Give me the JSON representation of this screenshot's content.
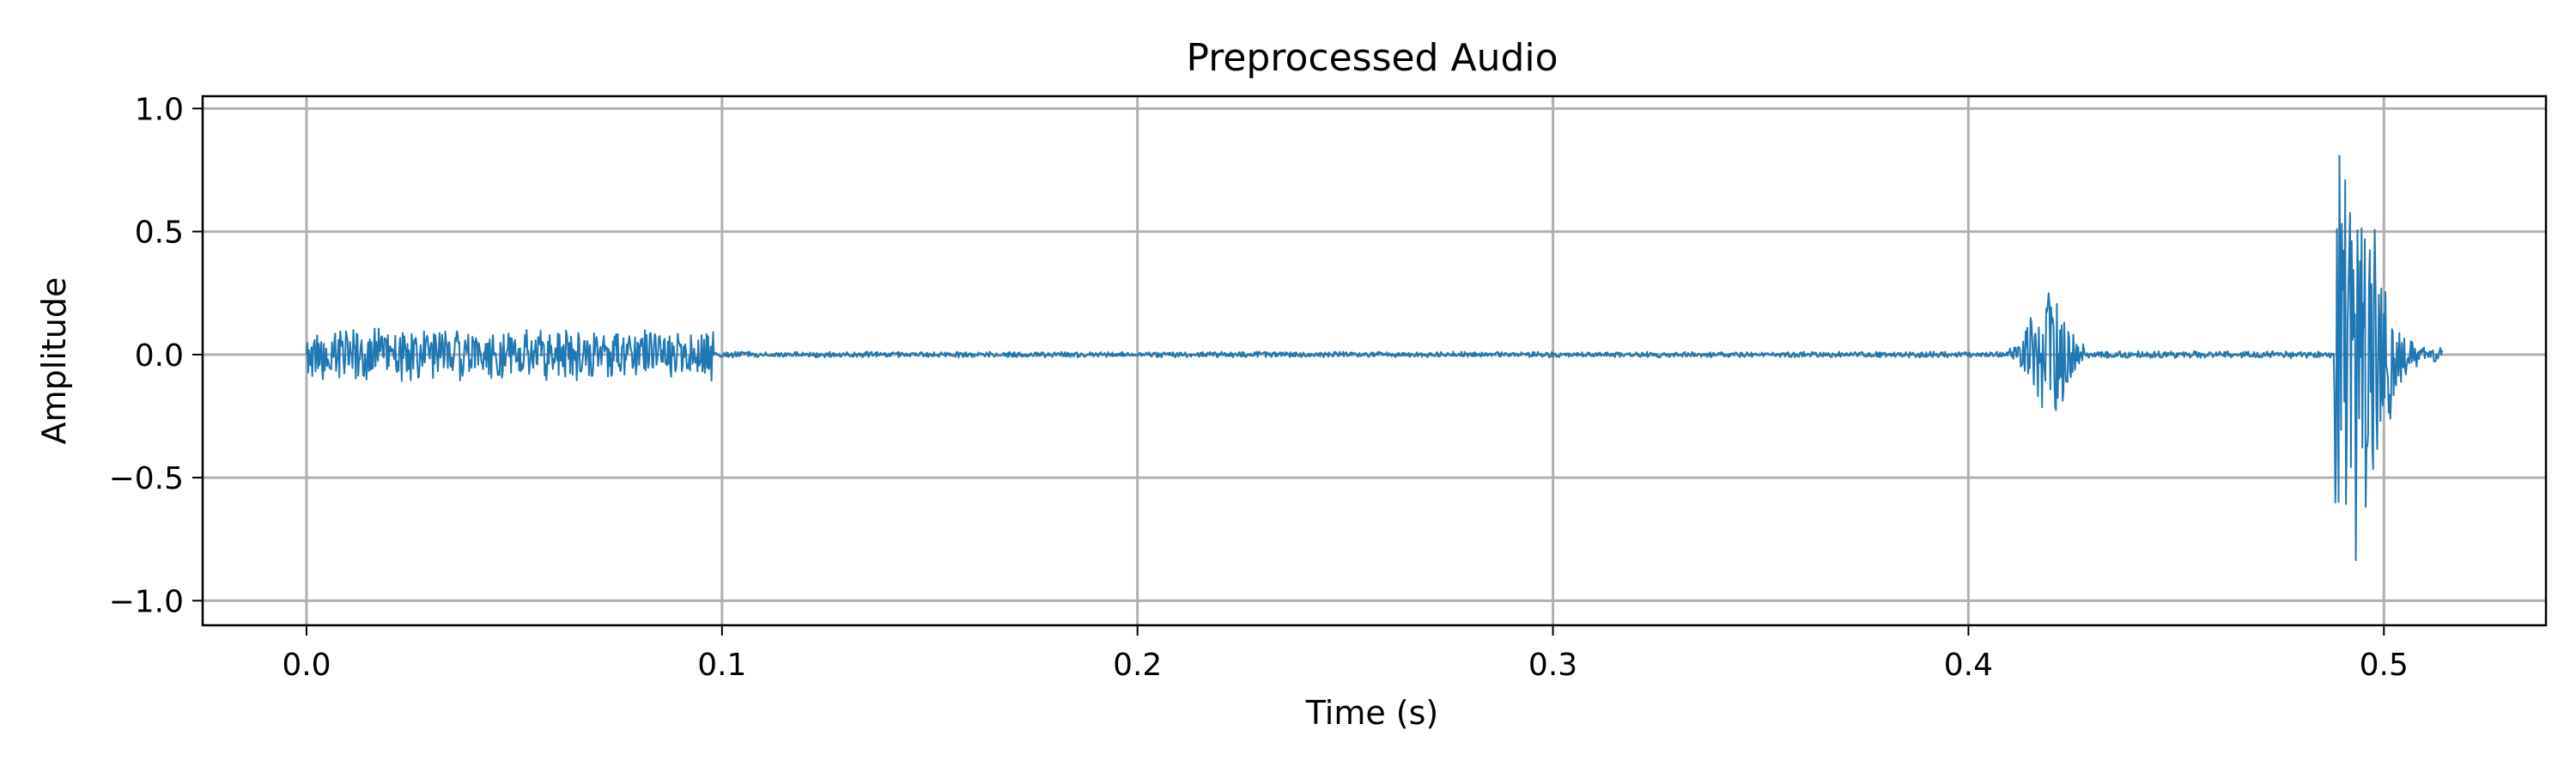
{
  "chart_data": {
    "type": "line",
    "title": "Preprocessed Audio",
    "xlabel": "Time (s)",
    "ylabel": "Amplitude",
    "xlim": [
      -0.025,
      0.539
    ],
    "ylim": [
      -1.1,
      1.05
    ],
    "grid": true,
    "xticks": [
      0.0,
      0.1,
      0.2,
      0.3,
      0.4,
      0.5
    ],
    "xtick_labels": [
      "0.0",
      "0.1",
      "0.2",
      "0.3",
      "0.4",
      "0.5"
    ],
    "yticks": [
      1.0,
      0.5,
      0.0,
      -0.5,
      -1.0
    ],
    "ytick_labels": [
      "1.0",
      "0.5",
      "0.0",
      "−0.5",
      "−1.0"
    ],
    "series": [
      {
        "color": "#1f77b4",
        "x_start": 0.0,
        "x_end": 0.514,
        "segments": [
          {
            "t0": 0.0,
            "t1": 0.098,
            "amplitude": 0.11,
            "cycles_per_second": 260
          },
          {
            "t0": 0.098,
            "t1": 0.41,
            "amplitude": 0.012,
            "cycles_per_second": 900
          },
          {
            "t0": 0.41,
            "t1": 0.428,
            "amplitude": 0.3,
            "cycles_per_second": 1100,
            "center": 0.4195
          },
          {
            "t0": 0.428,
            "t1": 0.488,
            "amplitude": 0.015,
            "cycles_per_second": 900
          },
          {
            "t0": 0.488,
            "t1": 0.508,
            "amplitude": 0.95,
            "cycles_per_second": 1200,
            "center": 0.4915
          },
          {
            "t0": 0.508,
            "t1": 0.514,
            "amplitude": 0.03,
            "cycles_per_second": 700
          }
        ]
      }
    ]
  }
}
